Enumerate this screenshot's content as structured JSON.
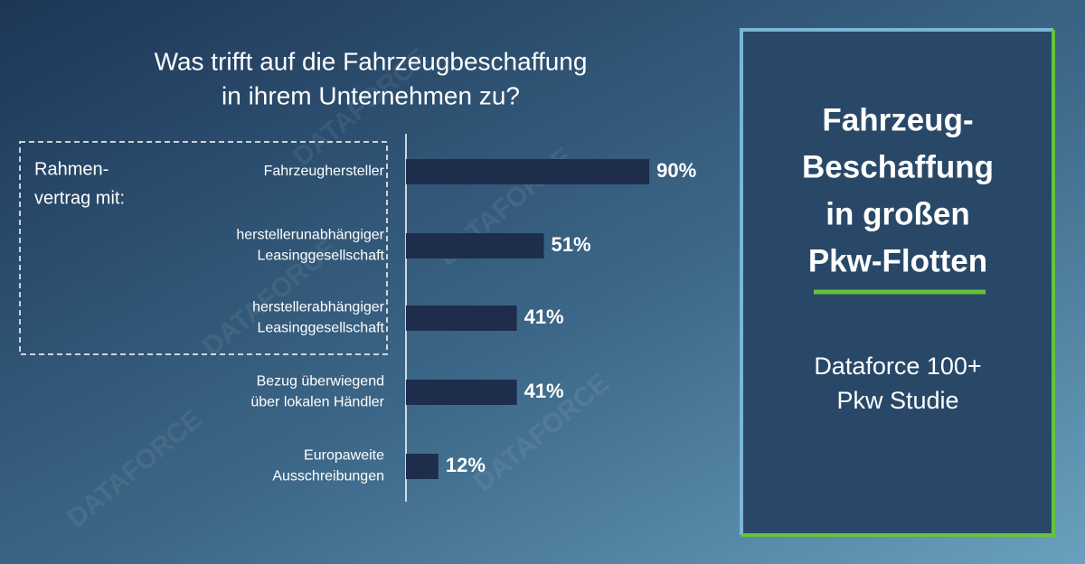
{
  "chart_data": {
    "type": "bar",
    "orientation": "horizontal",
    "title_lines": [
      "Was trifft auf die Fahrzeugbeschaffung",
      "in ihrem Unternehmen zu?"
    ],
    "group_label_lines": [
      "Rahmen-",
      "vertrag mit:"
    ],
    "categories": [
      [
        "Fahrzeughersteller"
      ],
      [
        "herstellerunabhängiger",
        "Leasinggesellschaft"
      ],
      [
        "herstellerabhängiger",
        "Leasinggesellschaft"
      ],
      [
        "Bezug überwiegend",
        "über lokalen Händler"
      ],
      [
        "Europaweite",
        "Ausschreibungen"
      ]
    ],
    "values": [
      90,
      51,
      41,
      41,
      12
    ],
    "value_labels": [
      "90%",
      "51%",
      "41%",
      "41%",
      "12%"
    ],
    "color": "#1e2d4b"
  },
  "panel": {
    "title_lines": [
      "Fahrzeug-",
      "Beschaffung",
      "in großen",
      "Pkw-Flotten"
    ],
    "subtitle_lines": [
      "Dataforce 100+",
      "Pkw Studie"
    ]
  },
  "watermark": "DATAFORCE"
}
